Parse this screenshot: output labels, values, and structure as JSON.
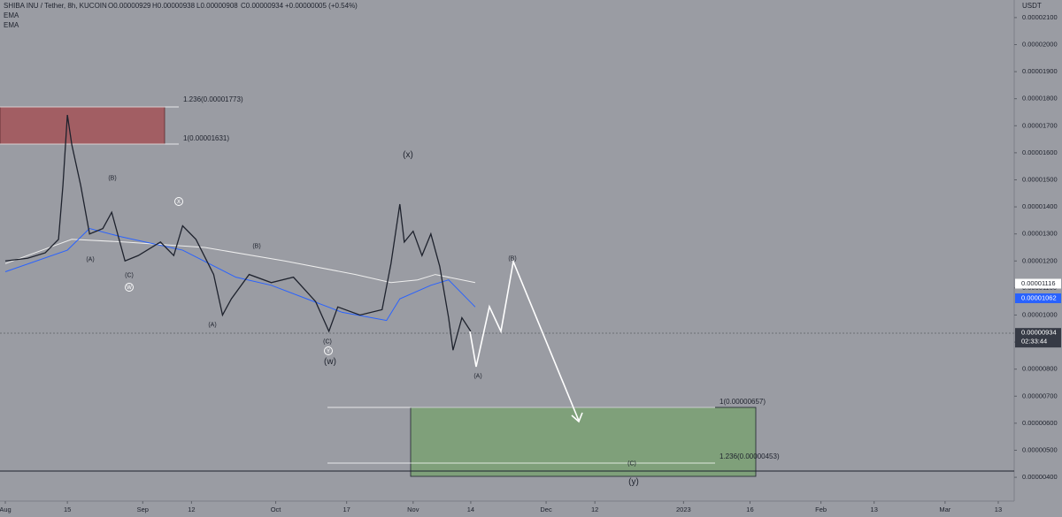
{
  "chart_data": {
    "type": "line",
    "header": {
      "symbol": "SHIBA INU / Tether, 8h, KUCOIN",
      "open": "O0.00000929",
      "high": "H0.00000938",
      "low": "L0.00000908",
      "close": "C0.00000934",
      "change": "+0.00000005 (+0.54%)"
    },
    "currency": "USDT",
    "xlim": [
      -1.2,
      227.6
    ],
    "xticks": [
      {
        "value": 0,
        "label": "Aug"
      },
      {
        "value": 14,
        "label": "15"
      },
      {
        "value": 31,
        "label": "Sep"
      },
      {
        "value": 42,
        "label": "12"
      },
      {
        "value": 61,
        "label": "Oct"
      },
      {
        "value": 77,
        "label": "17"
      },
      {
        "value": 92,
        "label": "Nov"
      },
      {
        "value": 105,
        "label": "14"
      },
      {
        "value": 122,
        "label": "Dec"
      },
      {
        "value": 133,
        "label": "12"
      },
      {
        "value": 153,
        "label": "2023"
      },
      {
        "value": 168,
        "label": "16"
      },
      {
        "value": 184,
        "label": "Feb"
      },
      {
        "value": 196,
        "label": "13"
      },
      {
        "value": 212,
        "label": "Mar"
      },
      {
        "value": 224,
        "label": "13"
      }
    ],
    "ylim": [
      2.165e-05,
      3.12e-06
    ],
    "yticks": [
      {
        "value": 2.1e-05,
        "label": "0.00002100"
      },
      {
        "value": 2e-05,
        "label": "0.00002000"
      },
      {
        "value": 1.9e-05,
        "label": "0.00001900"
      },
      {
        "value": 1.8e-05,
        "label": "0.00001800"
      },
      {
        "value": 1.7e-05,
        "label": "0.00001700"
      },
      {
        "value": 1.6e-05,
        "label": "0.00001600"
      },
      {
        "value": 1.5e-05,
        "label": "0.00001500"
      },
      {
        "value": 1.4e-05,
        "label": "0.00001400"
      },
      {
        "value": 1.3e-05,
        "label": "0.00001300"
      },
      {
        "value": 1.2e-05,
        "label": "0.00001200"
      },
      {
        "value": 1.1e-05,
        "label": "0.00001100"
      },
      {
        "value": 1e-05,
        "label": "0.00001000"
      },
      {
        "value": 9e-06,
        "label": "0.00000900"
      },
      {
        "value": 8e-06,
        "label": "0.00000800"
      },
      {
        "value": 7e-06,
        "label": "0.00000700"
      },
      {
        "value": 6e-06,
        "label": "0.00000600"
      },
      {
        "value": 5e-06,
        "label": "0.00000500"
      },
      {
        "value": 4e-06,
        "label": "0.00000400"
      }
    ],
    "series": [
      {
        "name": "Price",
        "color": "#1e222d",
        "x": [
          0,
          5,
          9,
          12,
          13,
          14,
          15,
          17,
          19,
          22,
          24,
          27,
          30,
          35,
          38,
          40,
          43,
          47,
          49,
          51,
          55,
          60,
          65,
          70,
          73,
          75,
          80,
          85,
          87,
          89,
          90,
          92,
          94,
          96,
          98,
          100,
          101,
          103,
          105
        ],
        "values": [
          1.2e-05,
          1.21e-05,
          1.23e-05,
          1.28e-05,
          1.48e-05,
          1.74e-05,
          1.63e-05,
          1.48e-05,
          1.3e-05,
          1.32e-05,
          1.38e-05,
          1.2e-05,
          1.22e-05,
          1.27e-05,
          1.22e-05,
          1.33e-05,
          1.28e-05,
          1.15e-05,
          1e-05,
          1.06e-05,
          1.15e-05,
          1.12e-05,
          1.14e-05,
          1.05e-05,
          9.4e-06,
          1.03e-05,
          1e-05,
          1.02e-05,
          1.19e-05,
          1.41e-05,
          1.27e-05,
          1.31e-05,
          1.22e-05,
          1.3e-05,
          1.18e-05,
          9.9e-06,
          8.7e-06,
          9.9e-06,
          9.4e-06
        ]
      },
      {
        "name": "EMA",
        "color": "#2962ff",
        "x": [
          0,
          14,
          19,
          26,
          40,
          52,
          60,
          68,
          76,
          86,
          89,
          96,
          100,
          106
        ],
        "values": [
          1.16e-05,
          1.24e-05,
          1.32e-05,
          1.29e-05,
          1.24e-05,
          1.14e-05,
          1.11e-05,
          1.06e-05,
          1.01e-05,
          9.8e-06,
          1.06e-05,
          1.11e-05,
          1.13e-05,
          1.03e-05
        ]
      },
      {
        "name": "EMA",
        "color": "#eeeeee",
        "x": [
          0,
          15,
          27,
          45,
          63,
          79,
          87,
          93,
          97,
          106
        ],
        "values": [
          1.19e-05,
          1.28e-05,
          1.27e-05,
          1.25e-05,
          1.2e-05,
          1.15e-05,
          1.12e-05,
          1.13e-05,
          1.15e-05,
          1.12e-05
        ]
      }
    ],
    "price_badges": [
      {
        "value": 1.116e-05,
        "label": "0.00001116"
      },
      {
        "value": 1.062e-05,
        "label": "0.00001062"
      },
      {
        "value": 9.34e-06,
        "label": "0.00000934",
        "timer": "02:33:44"
      }
    ],
    "fib_labels": [
      "1.236(0.00001773)",
      "1(0.00001631)",
      "1(0.00000657)",
      "1.236(0.00000453)"
    ],
    "annotations": [
      "(B)",
      "(A)",
      "(C)",
      "W",
      "X",
      "(B)",
      "(A)",
      "(C)",
      "Y",
      "(w)",
      "(x)",
      "(B)",
      "(A)",
      "(C)",
      "(y)"
    ]
  }
}
